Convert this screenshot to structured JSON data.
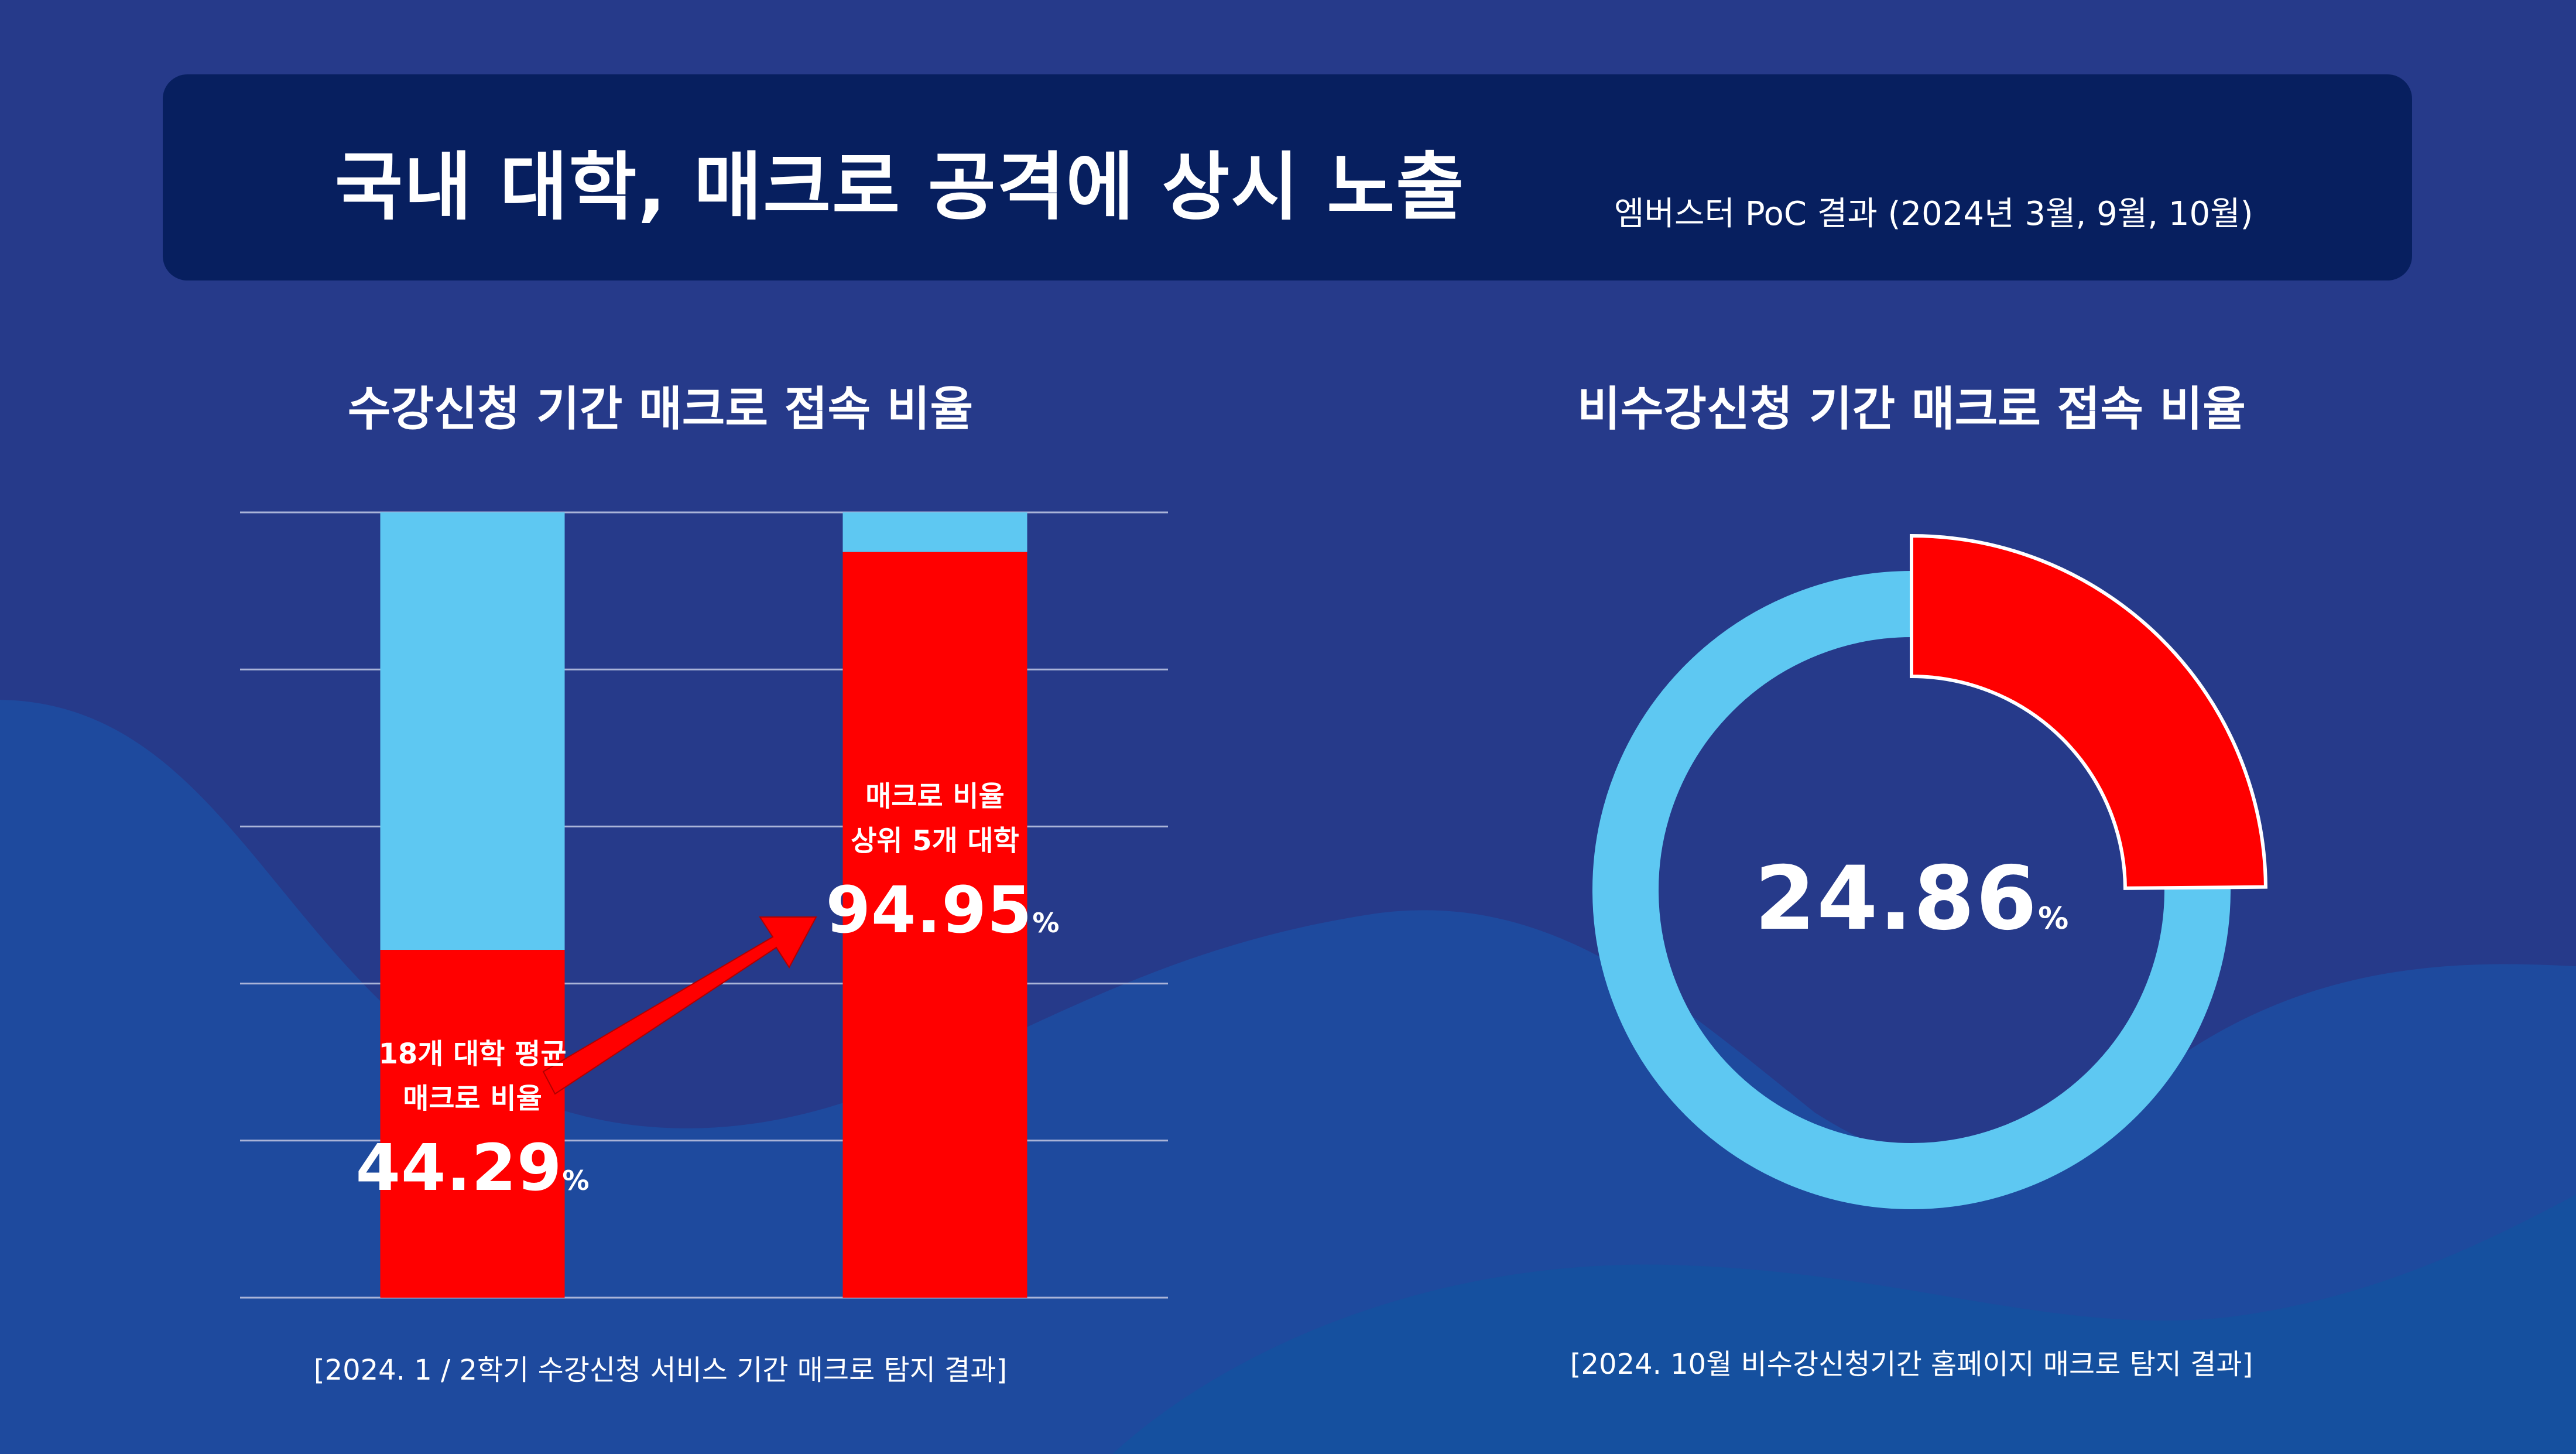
{
  "header": {
    "title": "국내 대학, 매크로 공격에 상시 노출",
    "subtitle": "엠버스터 PoC 결과 (2024년 3월, 9월, 10월)"
  },
  "colors": {
    "background": "#263a8a",
    "header_bg": "#071f5f",
    "macro": "#ff0000",
    "normal": "#5ec8f2",
    "wave": "#1f4f9c"
  },
  "left": {
    "title": "수강신청 기간 매크로 접속 비율",
    "footnote": "[2024. 1 / 2학기 수강신청 서비스 기간 매크로 탐지 결과]",
    "bar1_label_line1": "18개 대학 평균",
    "bar1_label_line2": "매크로 비율",
    "bar1_value": "44.29",
    "bar2_label_line1": "매크로 비율",
    "bar2_label_line2": "상위 5개 대학",
    "bar2_value": "94.95",
    "pct": "%"
  },
  "right": {
    "title": "비수강신청 기간 매크로 접속 비율",
    "footnote": "[2024. 10월 비수강신청기간 홈페이지 매크로 탐지 결과]",
    "value": "24.86",
    "pct": "%"
  },
  "chart_data": [
    {
      "type": "bar",
      "title": "수강신청 기간 매크로 접속 비율",
      "categories": [
        "18개 대학 평균 매크로 비율",
        "매크로 비율 상위 5개 대학"
      ],
      "stacked": true,
      "series": [
        {
          "name": "매크로",
          "values": [
            44.29,
            94.95
          ]
        },
        {
          "name": "",
          "values": [
            55.71,
            5.05
          ]
        }
      ],
      "ylim": [
        0,
        100
      ],
      "grid": true
    },
    {
      "type": "pie",
      "title": "비수강신청 기간 매크로 접속 비율",
      "donut": true,
      "values": [
        24.86,
        75.14
      ],
      "labels": [
        "매크로",
        ""
      ]
    }
  ]
}
